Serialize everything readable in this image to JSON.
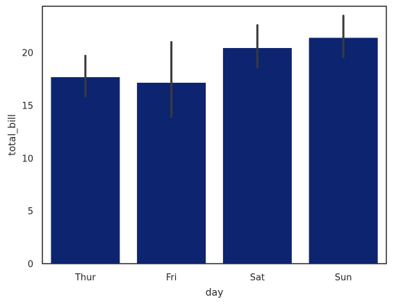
{
  "chart_data": {
    "type": "bar",
    "xlabel": "day",
    "ylabel": "total_bill",
    "categories": [
      "Thur",
      "Fri",
      "Sat",
      "Sun"
    ],
    "values": [
      17.68,
      17.15,
      20.44,
      21.41
    ],
    "error_low": [
      15.8,
      13.9,
      18.6,
      19.6
    ],
    "error_high": [
      19.7,
      21.0,
      22.6,
      23.5
    ],
    "ylim": [
      0,
      24.4
    ],
    "yticks": [
      0,
      5,
      10,
      15,
      20
    ],
    "grid": false,
    "bar_color": "#0d2470",
    "errorbar_color": "#3a3a3a"
  }
}
